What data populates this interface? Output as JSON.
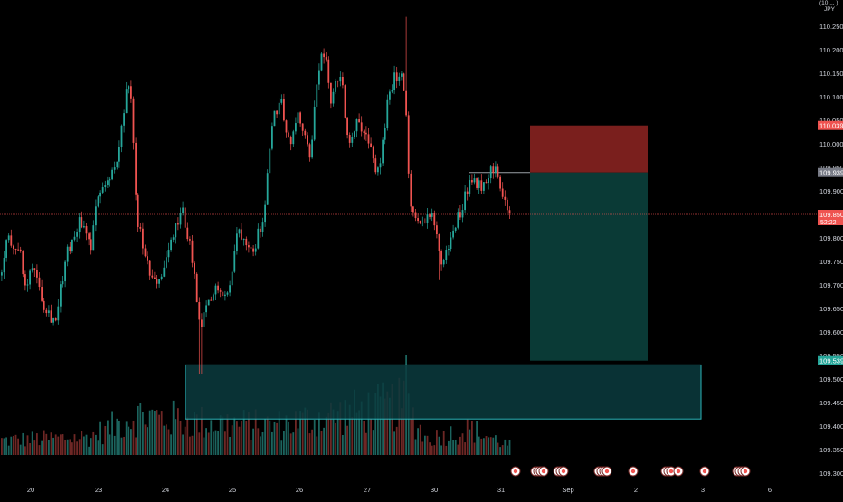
{
  "chart_data": {
    "type": "candlestick",
    "currency": "JPY",
    "x_tick_labels": [
      "20",
      "23",
      "24",
      "25",
      "26",
      "27",
      "30",
      "31",
      "Sep",
      "2",
      "3",
      "6"
    ],
    "y_ticks": [
      110.25,
      110.2,
      110.15,
      110.1,
      110.05,
      110.0,
      109.95,
      109.9,
      109.85,
      109.8,
      109.75,
      109.7,
      109.65,
      109.6,
      109.55,
      109.5,
      109.45,
      109.4,
      109.35,
      109.3
    ],
    "ylim": [
      109.275,
      110.297
    ],
    "price_tags": [
      {
        "label": "110.039",
        "value": 110.039,
        "color": "#ef5350"
      },
      {
        "label": "109.939",
        "value": 109.939,
        "color": "#787b86"
      },
      {
        "label": "109.850",
        "sub": "52:22",
        "value": 109.85,
        "color": "#ef5350"
      },
      {
        "label": "109.539",
        "value": 109.539,
        "color": "#26a69a"
      }
    ],
    "position_tool": {
      "entry": 109.939,
      "stop": 110.039,
      "target": 109.539,
      "stop_color": "#7a1f1d",
      "target_color": "#0a3a36"
    },
    "demand_zone": {
      "top": 109.53,
      "bottom": 109.415
    },
    "candles": {
      "bull_color": "#26a69a",
      "bear_color": "#ef5350"
    },
    "price_waypoints": [
      [
        0,
        109.72
      ],
      [
        8,
        109.8
      ],
      [
        20,
        109.78
      ],
      [
        28,
        109.68
      ],
      [
        35,
        109.75
      ],
      [
        48,
        109.66
      ],
      [
        60,
        109.62
      ],
      [
        72,
        109.76
      ],
      [
        88,
        109.84
      ],
      [
        100,
        109.78
      ],
      [
        108,
        109.9
      ],
      [
        128,
        109.95
      ],
      [
        140,
        110.12
      ],
      [
        145,
        110.08
      ],
      [
        150,
        109.85
      ],
      [
        160,
        109.75
      ],
      [
        168,
        109.7
      ],
      [
        178,
        109.72
      ],
      [
        190,
        109.8
      ],
      [
        200,
        109.86
      ],
      [
        210,
        109.78
      ],
      [
        216,
        109.68
      ],
      [
        220,
        109.6
      ],
      [
        226,
        109.64
      ],
      [
        240,
        109.7
      ],
      [
        252,
        109.68
      ],
      [
        262,
        109.82
      ],
      [
        280,
        109.78
      ],
      [
        292,
        109.86
      ],
      [
        300,
        110.05
      ],
      [
        310,
        110.1
      ],
      [
        318,
        110.0
      ],
      [
        330,
        110.06
      ],
      [
        342,
        109.96
      ],
      [
        350,
        110.15
      ],
      [
        358,
        110.2
      ],
      [
        365,
        110.08
      ],
      [
        375,
        110.16
      ],
      [
        385,
        110.0
      ],
      [
        395,
        110.06
      ],
      [
        410,
        109.98
      ],
      [
        418,
        109.93
      ],
      [
        430,
        110.12
      ],
      [
        442,
        110.16
      ],
      [
        448,
        110.08
      ],
      [
        452,
        109.87
      ],
      [
        462,
        109.82
      ],
      [
        470,
        109.85
      ],
      [
        478,
        109.84
      ],
      [
        488,
        109.74
      ],
      [
        498,
        109.8
      ],
      [
        510,
        109.87
      ],
      [
        520,
        109.93
      ],
      [
        530,
        109.91
      ],
      [
        540,
        109.94
      ],
      [
        548,
        109.96
      ],
      [
        556,
        109.87
      ],
      [
        565,
        109.85
      ]
    ],
    "volume_waypoints": [
      [
        0,
        20
      ],
      [
        100,
        25
      ],
      [
        150,
        55
      ],
      [
        220,
        45
      ],
      [
        300,
        40
      ],
      [
        370,
        55
      ],
      [
        448,
        70
      ],
      [
        470,
        22
      ],
      [
        520,
        35
      ],
      [
        565,
        12
      ]
    ],
    "event_marker_count": 24
  }
}
